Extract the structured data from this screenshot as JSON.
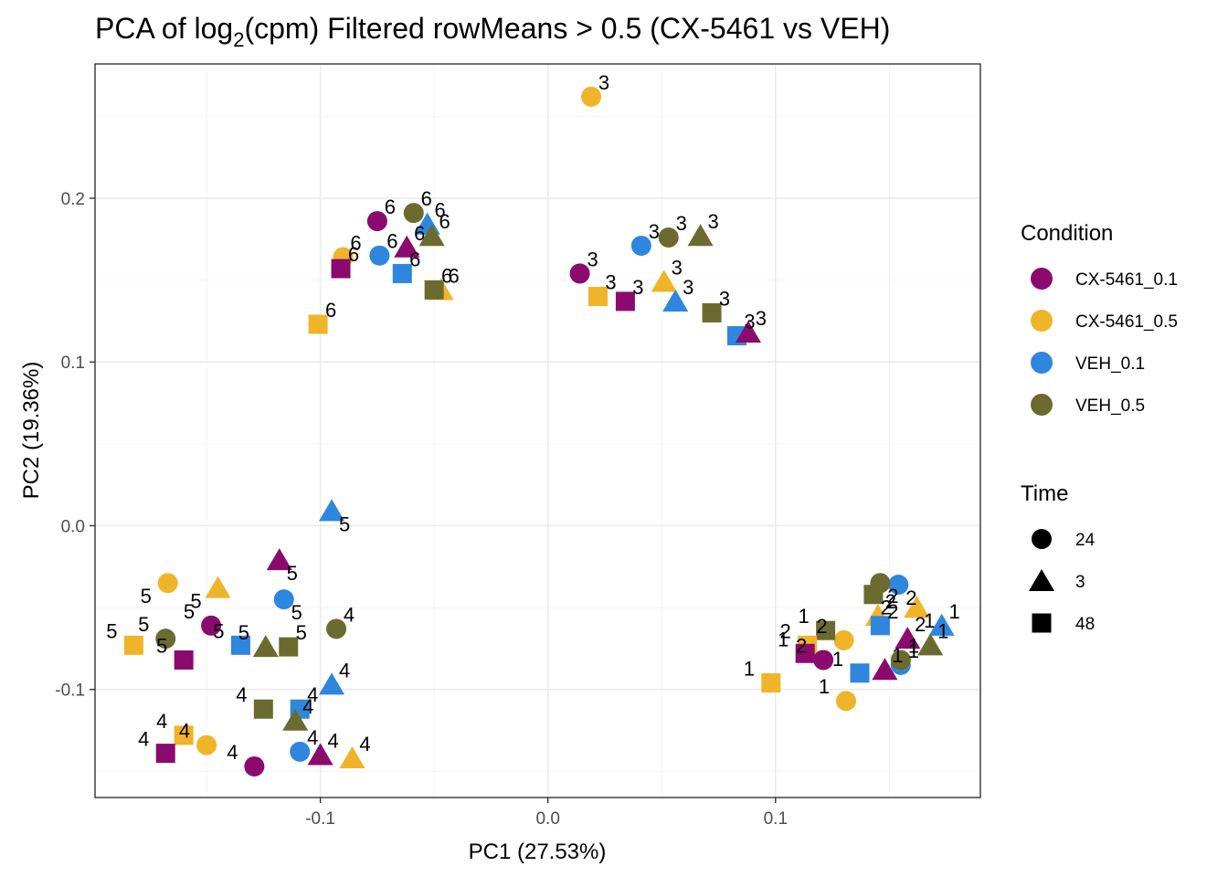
{
  "chart_data": {
    "type": "scatter",
    "title_prefix": "PCA of log",
    "title_subscript": "2",
    "title_suffix": "(cpm) Filtered rowMeans > 0.5 (CX-5461 vs VEH)",
    "xlabel": "PC1 (27.53%)",
    "ylabel": "PC2 (19.36%)",
    "xlim": [
      -0.199,
      0.19
    ],
    "ylim": [
      -0.166,
      0.282
    ],
    "x_ticks": [
      -0.1,
      0.0,
      0.1
    ],
    "x_tick_labels": [
      "-0.1",
      "0.0",
      "0.1"
    ],
    "y_ticks": [
      -0.1,
      0.0,
      0.1,
      0.2
    ],
    "y_tick_labels": [
      "-0.1",
      "0.0",
      "0.1",
      "0.2"
    ],
    "grid": true,
    "legend_placement": "right",
    "legends": {
      "condition": {
        "title": "Condition",
        "items": [
          {
            "label": "CX-5461_0.1",
            "color": "#8B0A6E"
          },
          {
            "label": "CX-5461_0.5",
            "color": "#F0B429"
          },
          {
            "label": "VEH_0.1",
            "color": "#2E86DE"
          },
          {
            "label": "VEH_0.5",
            "color": "#6B6B30"
          }
        ]
      },
      "time": {
        "title": "Time",
        "items": [
          {
            "label": "24",
            "shape": "circle"
          },
          {
            "label": "3",
            "shape": "triangle"
          },
          {
            "label": "48",
            "shape": "square"
          }
        ]
      }
    },
    "points": [
      {
        "x": 0.019,
        "y": 0.262,
        "condition": "CX-5461_0.5",
        "time": "24",
        "label": "3"
      },
      {
        "x": 0.014,
        "y": 0.154,
        "condition": "CX-5461_0.1",
        "time": "24",
        "label": "3"
      },
      {
        "x": 0.022,
        "y": 0.14,
        "condition": "CX-5461_0.5",
        "time": "48",
        "label": "3"
      },
      {
        "x": 0.034,
        "y": 0.137,
        "condition": "CX-5461_0.1",
        "time": "48",
        "label": "3"
      },
      {
        "x": 0.041,
        "y": 0.171,
        "condition": "VEH_0.1",
        "time": "24",
        "label": "3"
      },
      {
        "x": 0.053,
        "y": 0.176,
        "condition": "VEH_0.5",
        "time": "24",
        "label": "3"
      },
      {
        "x": 0.067,
        "y": 0.177,
        "condition": "VEH_0.5",
        "time": "3",
        "label": "3"
      },
      {
        "x": 0.051,
        "y": 0.149,
        "condition": "CX-5461_0.5",
        "time": "3",
        "label": "3"
      },
      {
        "x": 0.056,
        "y": 0.137,
        "condition": "VEH_0.1",
        "time": "3",
        "label": "3"
      },
      {
        "x": 0.072,
        "y": 0.13,
        "condition": "VEH_0.5",
        "time": "48",
        "label": "3"
      },
      {
        "x": 0.083,
        "y": 0.116,
        "condition": "VEH_0.1",
        "time": "48",
        "label": "3"
      },
      {
        "x": 0.088,
        "y": 0.118,
        "condition": "CX-5461_0.1",
        "time": "3",
        "label": "3"
      },
      {
        "x": -0.075,
        "y": 0.186,
        "condition": "CX-5461_0.1",
        "time": "24",
        "label": "6"
      },
      {
        "x": -0.059,
        "y": 0.191,
        "condition": "VEH_0.5",
        "time": "24",
        "label": "6"
      },
      {
        "x": -0.053,
        "y": 0.184,
        "condition": "VEH_0.1",
        "time": "3",
        "label": "6"
      },
      {
        "x": -0.051,
        "y": 0.177,
        "condition": "VEH_0.5",
        "time": "3",
        "label": "6"
      },
      {
        "x": -0.062,
        "y": 0.17,
        "condition": "CX-5461_0.1",
        "time": "3",
        "label": "6"
      },
      {
        "x": -0.09,
        "y": 0.164,
        "condition": "CX-5461_0.5",
        "time": "24",
        "label": "6"
      },
      {
        "x": -0.074,
        "y": 0.165,
        "condition": "VEH_0.1",
        "time": "24",
        "label": "6"
      },
      {
        "x": -0.091,
        "y": 0.157,
        "condition": "CX-5461_0.1",
        "time": "48",
        "label": "6"
      },
      {
        "x": -0.064,
        "y": 0.154,
        "condition": "VEH_0.1",
        "time": "48",
        "label": "6"
      },
      {
        "x": -0.047,
        "y": 0.144,
        "condition": "CX-5461_0.5",
        "time": "3",
        "label": "6"
      },
      {
        "x": -0.05,
        "y": 0.144,
        "condition": "VEH_0.5",
        "time": "48",
        "label": "6"
      },
      {
        "x": -0.101,
        "y": 0.123,
        "condition": "CX-5461_0.5",
        "time": "48",
        "label": "6"
      },
      {
        "x": -0.095,
        "y": 0.009,
        "condition": "VEH_0.1",
        "time": "3",
        "label": "5"
      },
      {
        "x": -0.118,
        "y": -0.021,
        "condition": "CX-5461_0.1",
        "time": "3",
        "label": "5"
      },
      {
        "x": -0.145,
        "y": -0.038,
        "condition": "CX-5461_0.5",
        "time": "3",
        "label": "5"
      },
      {
        "x": -0.167,
        "y": -0.035,
        "condition": "CX-5461_0.5",
        "time": "24",
        "label": "5"
      },
      {
        "x": -0.116,
        "y": -0.045,
        "condition": "VEH_0.1",
        "time": "24",
        "label": "5"
      },
      {
        "x": -0.148,
        "y": -0.061,
        "condition": "CX-5461_0.1",
        "time": "24",
        "label": "5"
      },
      {
        "x": -0.168,
        "y": -0.069,
        "condition": "VEH_0.5",
        "time": "24",
        "label": "5"
      },
      {
        "x": -0.182,
        "y": -0.073,
        "condition": "CX-5461_0.5",
        "time": "48",
        "label": "5"
      },
      {
        "x": -0.16,
        "y": -0.082,
        "condition": "CX-5461_0.1",
        "time": "48",
        "label": "5"
      },
      {
        "x": -0.135,
        "y": -0.073,
        "condition": "VEH_0.1",
        "time": "48",
        "label": "5"
      },
      {
        "x": -0.124,
        "y": -0.074,
        "condition": "VEH_0.5",
        "time": "3",
        "label": "5"
      },
      {
        "x": -0.114,
        "y": -0.074,
        "condition": "VEH_0.5",
        "time": "48",
        "label": "5"
      },
      {
        "x": -0.093,
        "y": -0.063,
        "condition": "VEH_0.5",
        "time": "24",
        "label": "4"
      },
      {
        "x": -0.095,
        "y": -0.097,
        "condition": "VEH_0.1",
        "time": "3",
        "label": "4"
      },
      {
        "x": -0.125,
        "y": -0.112,
        "condition": "VEH_0.5",
        "time": "48",
        "label": "4"
      },
      {
        "x": -0.109,
        "y": -0.112,
        "condition": "VEH_0.1",
        "time": "48",
        "label": "4"
      },
      {
        "x": -0.111,
        "y": -0.119,
        "condition": "VEH_0.5",
        "time": "3",
        "label": "4"
      },
      {
        "x": -0.16,
        "y": -0.128,
        "condition": "CX-5461_0.5",
        "time": "48",
        "label": "4"
      },
      {
        "x": -0.15,
        "y": -0.134,
        "condition": "CX-5461_0.5",
        "time": "24",
        "label": "4"
      },
      {
        "x": -0.168,
        "y": -0.139,
        "condition": "CX-5461_0.1",
        "time": "48",
        "label": "4"
      },
      {
        "x": -0.109,
        "y": -0.138,
        "condition": "VEH_0.1",
        "time": "24",
        "label": "4"
      },
      {
        "x": -0.1,
        "y": -0.14,
        "condition": "CX-5461_0.1",
        "time": "3",
        "label": "4"
      },
      {
        "x": -0.086,
        "y": -0.142,
        "condition": "CX-5461_0.5",
        "time": "3",
        "label": "4"
      },
      {
        "x": -0.129,
        "y": -0.147,
        "condition": "CX-5461_0.1",
        "time": "24",
        "label": "4"
      },
      {
        "x": 0.154,
        "y": -0.036,
        "condition": "VEH_0.1",
        "time": "24",
        "label": "2"
      },
      {
        "x": 0.146,
        "y": -0.035,
        "condition": "VEH_0.5",
        "time": "24",
        "label": "2"
      },
      {
        "x": 0.162,
        "y": -0.05,
        "condition": "CX-5461_0.5",
        "time": "3",
        "label": "1"
      },
      {
        "x": 0.143,
        "y": -0.042,
        "condition": "VEH_0.5",
        "time": "48",
        "label": "2"
      },
      {
        "x": 0.145,
        "y": -0.055,
        "condition": "CX-5461_0.5",
        "time": "3",
        "label": "2"
      },
      {
        "x": 0.173,
        "y": -0.061,
        "condition": "VEH_0.1",
        "time": "3",
        "label": "1"
      },
      {
        "x": 0.146,
        "y": -0.061,
        "condition": "VEH_0.1",
        "time": "48",
        "label": "2"
      },
      {
        "x": 0.13,
        "y": -0.07,
        "condition": "CX-5461_0.5",
        "time": "24",
        "label": "2"
      },
      {
        "x": 0.122,
        "y": -0.064,
        "condition": "VEH_0.5",
        "time": "48",
        "label": "1"
      },
      {
        "x": 0.114,
        "y": -0.073,
        "condition": "CX-5461_0.5",
        "time": "48",
        "label": "2"
      },
      {
        "x": 0.158,
        "y": -0.069,
        "condition": "CX-5461_0.1",
        "time": "3",
        "label": "2"
      },
      {
        "x": 0.168,
        "y": -0.073,
        "condition": "VEH_0.5",
        "time": "3",
        "label": "1"
      },
      {
        "x": 0.113,
        "y": -0.078,
        "condition": "CX-5461_0.1",
        "time": "48",
        "label": "1"
      },
      {
        "x": 0.121,
        "y": -0.082,
        "condition": "CX-5461_0.1",
        "time": "24",
        "label": "2"
      },
      {
        "x": 0.155,
        "y": -0.085,
        "condition": "VEH_0.1",
        "time": "24",
        "label": "1"
      },
      {
        "x": 0.155,
        "y": -0.082,
        "condition": "VEH_0.5",
        "time": "24",
        "label": "1"
      },
      {
        "x": 0.148,
        "y": -0.088,
        "condition": "CX-5461_0.1",
        "time": "3",
        "label": "1"
      },
      {
        "x": 0.137,
        "y": -0.09,
        "condition": "VEH_0.1",
        "time": "48",
        "label": "1"
      },
      {
        "x": 0.098,
        "y": -0.096,
        "condition": "CX-5461_0.5",
        "time": "48",
        "label": "1"
      },
      {
        "x": 0.131,
        "y": -0.107,
        "condition": "CX-5461_0.5",
        "time": "24",
        "label": "1"
      }
    ]
  }
}
